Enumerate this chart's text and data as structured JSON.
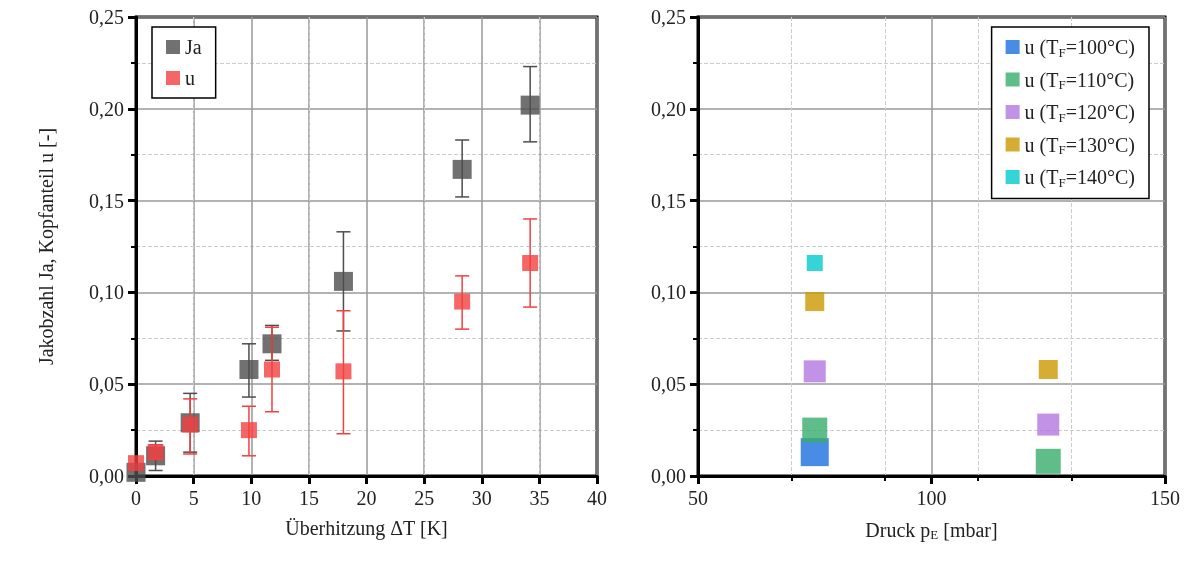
{
  "chart_data": [
    {
      "type": "scatter",
      "xlabel": "Überhitzung ΔT [K]",
      "ylabel": "Jakobzahl Ja, Kopfanteil u [-]",
      "xlim": [
        0,
        40
      ],
      "xticks": [
        0,
        5,
        10,
        15,
        20,
        25,
        30,
        35,
        40
      ],
      "ylim": [
        0,
        0.25
      ],
      "yticks": [
        {
          "value": 0,
          "label": "0,00"
        },
        {
          "value": 0.05,
          "label": "0,05"
        },
        {
          "value": 0.1,
          "label": "0,10"
        },
        {
          "value": 0.15,
          "label": "0,15"
        },
        {
          "value": 0.2,
          "label": "0,20"
        },
        {
          "value": 0.25,
          "label": "0,25"
        }
      ],
      "grid": true,
      "legend": "top left",
      "marker": "square",
      "series": [
        {
          "name": "Ja",
          "color": "#4d4d4d",
          "x": [
            0,
            1.7,
            4.7,
            9.8,
            11.8,
            18,
            28.3,
            34.2
          ],
          "values": [
            0.002,
            0.011,
            0.029,
            0.058,
            0.072,
            0.106,
            0.167,
            0.202
          ],
          "errors": [
            null,
            [
              0.003,
              0.019
            ],
            [
              0.013,
              0.045
            ],
            [
              0.043,
              0.072
            ],
            [
              0.063,
              0.082
            ],
            [
              0.079,
              0.133
            ],
            [
              0.152,
              0.183
            ],
            [
              0.182,
              0.223
            ]
          ]
        },
        {
          "name": "u",
          "color": "#f24040",
          "x": [
            0,
            1.7,
            4.7,
            9.8,
            11.8,
            18,
            28.3,
            34.2
          ],
          "values": [
            0.007,
            0.013,
            0.028,
            0.025,
            0.058,
            0.057,
            0.095,
            0.116
          ],
          "errors": [
            null,
            [
              0.009,
              0.017
            ],
            [
              0.012,
              0.042
            ],
            [
              0.011,
              0.038
            ],
            [
              0.035,
              0.081
            ],
            [
              0.023,
              0.09
            ],
            [
              0.08,
              0.109
            ],
            [
              0.092,
              0.14
            ]
          ]
        }
      ]
    },
    {
      "type": "scatter",
      "xlabel": "Druck p$_{E}$ [mbar]",
      "xlim": [
        50,
        150
      ],
      "xticks": [
        50,
        100,
        150
      ],
      "ylim": [
        0,
        0.25
      ],
      "yticks": [
        {
          "value": 0,
          "label": "0,00"
        },
        {
          "value": 0.05,
          "label": "0,05"
        },
        {
          "value": 0.1,
          "label": "0,10"
        },
        {
          "value": 0.15,
          "label": "0,15"
        },
        {
          "value": 0.2,
          "label": "0,20"
        },
        {
          "value": 0.25,
          "label": "0,25"
        }
      ],
      "grid": true,
      "legend": "top right",
      "marker": "square",
      "series": [
        {
          "name": "u (T$_{F}$=100°C)",
          "color": "#1a6fdf",
          "x": [
            75
          ],
          "values": [
            0.013
          ]
        },
        {
          "name": "u (T$_{F}$=110°C)",
          "color": "#37ad6b",
          "x": [
            75,
            125
          ],
          "values": [
            0.025,
            0.008
          ]
        },
        {
          "name": "u (T$_{F}$=120°C)",
          "color": "#b177de",
          "x": [
            75,
            125
          ],
          "values": [
            0.057,
            0.028
          ]
        },
        {
          "name": "u (T$_{F}$=130°C)",
          "color": "#cc9900",
          "x": [
            75,
            125
          ],
          "values": [
            0.095,
            0.058
          ]
        },
        {
          "name": "u (T$_{F}$=140°C)",
          "color": "#00cbcc",
          "x": [
            75
          ],
          "values": [
            0.116
          ]
        }
      ]
    }
  ]
}
